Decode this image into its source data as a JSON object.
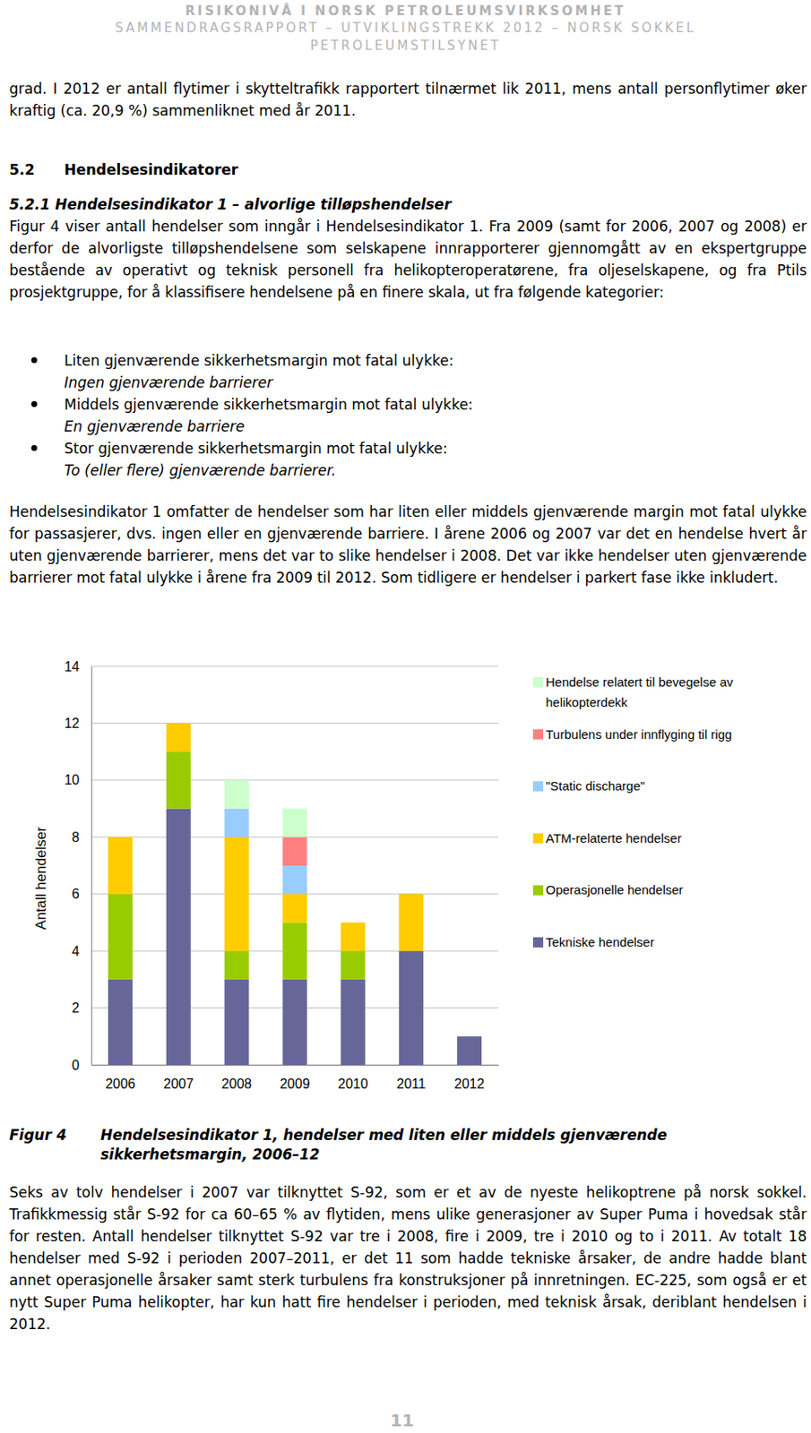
{
  "header": [
    "RISIKONIVÅ I NORSK PETROLEUMSVIRKSOMHET",
    "SAMMENDRAGSRAPPORT – UTVIKLINGSTREKK 2012 – NORSK SOKKEL",
    "PETROLEUMSTILSYNET"
  ],
  "intro": "grad. I 2012 er antall flytimer i skytteltrafikk rapportert tilnærmet lik 2011, mens antall personflytimer øker kraftig (ca. 20,9 %) sammenliknet med år 2011.",
  "section_heading": {
    "number": "5.2",
    "title": "Hendelsesindikatorer"
  },
  "subsection_heading": "5.2.1 Hendelsesindikator 1 – alvorlige tilløpshendelser",
  "paragraph_1": "Figur 4 viser antall hendelser som inngår i Hendelsesindikator 1. Fra 2009 (samt for 2006, 2007 og 2008) er derfor de alvorligste tilløpshendelsene som selskapene innrapporterer gjennomgått av en ekspertgruppe bestående av operativt og teknisk personell fra helikopteroperatørene, fra oljeselskapene, og fra Ptils prosjektgruppe, for å klassifisere hendelsene på en finere skala, ut fra følgende kategorier:",
  "bullets": [
    {
      "text": "Liten gjenværende sikkerhetsmargin mot fatal ulykke:",
      "note": "Ingen gjenværende barrierer"
    },
    {
      "text": "Middels gjenværende sikkerhetsmargin mot fatal ulykke:",
      "note": "En gjenværende barriere"
    },
    {
      "text": "Stor gjenværende sikkerhetsmargin mot fatal ulykke:",
      "note": "To (eller flere) gjenværende barrierer."
    }
  ],
  "paragraph_2": "Hendelsesindikator 1 omfatter de hendelser som har liten eller middels gjenværende margin mot fatal ulykke for passasjerer, dvs. ingen eller en gjenværende barriere. I årene 2006 og 2007 var det en hendelse hvert år uten gjenværende barrierer, mens det var to slike hendelser i 2008. Det var ikke hendelser uten gjenværende barrierer mot fatal ulykke i årene fra 2009 til 2012. Som tidligere er hendelser i parkert fase ikke inkludert.",
  "chart_data": {
    "type": "bar",
    "stacked": true,
    "y_label": "Antall hendelser",
    "categories": [
      "2006",
      "2007",
      "2008",
      "2009",
      "2010",
      "2011",
      "2012"
    ],
    "ylim": [
      0,
      14
    ],
    "yticks": [
      0,
      2,
      4,
      6,
      8,
      10,
      12,
      14
    ],
    "grid": true,
    "legend": "right",
    "series": [
      {
        "name": "Tekniske hendelser",
        "color": "#666699",
        "values": [
          3,
          9,
          3,
          3,
          3,
          4,
          1
        ]
      },
      {
        "name": "Operasjonelle hendelser",
        "color": "#99cc00",
        "values": [
          3,
          2,
          1,
          2,
          1,
          0,
          0
        ]
      },
      {
        "name": "ATM-relaterte hendelser",
        "color": "#ffcc00",
        "values": [
          2,
          1,
          4,
          1,
          1,
          2,
          0
        ]
      },
      {
        "name": "\"Static discharge\"",
        "color": "#99ccff",
        "values": [
          0,
          0,
          1,
          1,
          0,
          0,
          0
        ]
      },
      {
        "name": "Turbulens under innflyging til rigg",
        "color": "#ff8080",
        "values": [
          0,
          0,
          0,
          1,
          0,
          0,
          0
        ]
      },
      {
        "name": "Hendelse relatert til bevegelse av helikopterdekk",
        "color": "#ccffcc",
        "values": [
          0,
          0,
          1,
          1,
          0,
          0,
          0
        ]
      }
    ]
  },
  "caption": {
    "label": "Figur 4",
    "text": "Hendelsesindikator 1, hendelser med liten eller middels gjenværende sikkerhetsmargin, 2006–12"
  },
  "paragraph_3": "Seks av tolv hendelser i 2007 var tilknyttet S-92, som er et av de nyeste helikoptrene på norsk sokkel. Trafikkmessig står S-92 for ca 60–65 % av flytiden, mens ulike generasjoner av Super Puma i hovedsak står for resten. Antall hendelser tilknyttet S-92 var tre i 2008, fire i 2009, tre i 2010 og to i 2011. Av totalt 18 hendelser med S-92 i perioden 2007–2011, er det 11 som hadde tekniske årsaker, de andre hadde blant annet operasjonelle årsaker samt sterk turbulens fra konstruksjoner på innretningen. EC-225, som også er et nytt Super Puma helikopter, har kun hatt fire hendelser i perioden, med teknisk årsak, deriblant hendelsen i 2012.",
  "page_number": "11"
}
